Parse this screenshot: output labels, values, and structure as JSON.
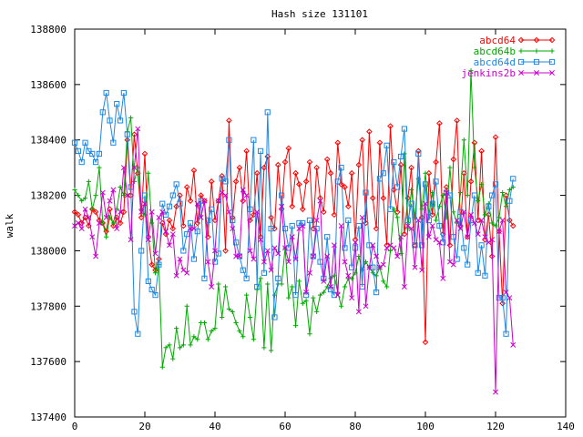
{
  "chart_data": {
    "type": "line",
    "title": "Hash size 131101",
    "xlabel": "",
    "ylabel": "walk",
    "xlim": [
      0,
      140
    ],
    "ylim": [
      137400,
      138800
    ],
    "xticks": [
      0,
      20,
      40,
      60,
      80,
      100,
      120,
      140
    ],
    "yticks": [
      137400,
      137600,
      137800,
      138000,
      138200,
      138400,
      138600,
      138800
    ],
    "grid": false,
    "legend_position": "top-right",
    "series": [
      {
        "name": "abcd64",
        "color": "#ff0000",
        "marker": "diamond",
        "x": [
          0,
          1,
          2,
          3,
          4,
          5,
          6,
          7,
          8,
          9,
          10,
          11,
          12,
          13,
          14,
          15,
          16,
          17,
          18,
          19,
          20,
          21,
          22,
          23,
          24,
          25,
          26,
          27,
          28,
          29,
          30,
          31,
          32,
          33,
          34,
          35,
          36,
          37,
          38,
          39,
          40,
          41,
          42,
          43,
          44,
          45,
          46,
          47,
          48,
          49,
          50,
          51,
          52,
          53,
          54,
          55,
          56,
          57,
          58,
          59,
          60,
          61,
          62,
          63,
          64,
          65,
          66,
          67,
          68,
          69,
          70,
          71,
          72,
          73,
          74,
          75,
          76,
          77,
          78,
          79,
          80,
          81,
          82,
          83,
          84,
          85,
          86,
          87,
          88,
          89,
          90,
          91,
          92,
          93,
          94,
          95,
          96,
          97,
          98,
          99,
          100,
          101,
          102,
          103,
          104,
          105,
          106,
          107,
          108,
          109,
          110,
          111,
          112,
          113,
          114,
          115,
          116,
          117,
          118,
          119,
          120,
          121,
          122,
          123,
          124,
          125
        ],
        "y": [
          138140,
          138130,
          138100,
          138120,
          138090,
          138150,
          138140,
          138110,
          138100,
          138070,
          138150,
          138090,
          138120,
          138100,
          138140,
          138400,
          138200,
          138420,
          138280,
          138120,
          138350,
          138050,
          137950,
          137930,
          137970,
          138100,
          138060,
          138110,
          138080,
          138160,
          138200,
          138090,
          138230,
          138180,
          138290,
          138100,
          138200,
          138180,
          138050,
          138250,
          138110,
          138180,
          138270,
          138000,
          138470,
          138120,
          138250,
          138300,
          138180,
          138360,
          138110,
          138130,
          138280,
          138050,
          138300,
          138340,
          138120,
          138080,
          138310,
          138150,
          138320,
          138370,
          138160,
          138280,
          138240,
          138150,
          138250,
          138320,
          138080,
          138300,
          138190,
          138140,
          138330,
          138280,
          138130,
          138390,
          138240,
          138230,
          138160,
          138280,
          138040,
          138310,
          138400,
          138100,
          138430,
          138190,
          138080,
          138390,
          138190,
          138020,
          138450,
          138220,
          138140,
          138310,
          138060,
          138190,
          138300,
          138020,
          138360,
          138120,
          137670,
          138280,
          138130,
          138320,
          138460,
          138060,
          138230,
          138020,
          138330,
          138470,
          138090,
          138280,
          138050,
          138250,
          138390,
          138110,
          138360,
          138040,
          138130,
          137980,
          138410,
          138070,
          137810,
          138200,
          138110,
          138090
        ]
      },
      {
        "name": "abcd64b",
        "color": "#00aa00",
        "marker": "plus",
        "x": [
          0,
          1,
          2,
          3,
          4,
          5,
          6,
          7,
          8,
          9,
          10,
          11,
          12,
          13,
          14,
          15,
          16,
          17,
          18,
          19,
          20,
          21,
          22,
          23,
          24,
          25,
          26,
          27,
          28,
          29,
          30,
          31,
          32,
          33,
          34,
          35,
          36,
          37,
          38,
          39,
          40,
          41,
          42,
          43,
          44,
          45,
          46,
          47,
          48,
          49,
          50,
          51,
          52,
          53,
          54,
          55,
          56,
          57,
          58,
          59,
          60,
          61,
          62,
          63,
          64,
          65,
          66,
          67,
          68,
          69,
          70,
          71,
          72,
          73,
          74,
          75,
          76,
          77,
          78,
          79,
          80,
          81,
          82,
          83,
          84,
          85,
          86,
          87,
          88,
          89,
          90,
          91,
          92,
          93,
          94,
          95,
          96,
          97,
          98,
          99,
          100,
          101,
          102,
          103,
          104,
          105,
          106,
          107,
          108,
          109,
          110,
          111,
          112,
          113,
          114,
          115,
          116,
          117,
          118,
          119,
          120,
          121,
          122,
          123,
          124,
          125
        ],
        "y": [
          138220,
          138200,
          138180,
          138190,
          138250,
          138150,
          138200,
          138300,
          138100,
          138050,
          138120,
          138100,
          138150,
          138230,
          138200,
          138430,
          138480,
          138250,
          138300,
          138150,
          138130,
          138280,
          138100,
          137920,
          137950,
          137580,
          137650,
          137660,
          137610,
          137720,
          137650,
          137660,
          137800,
          137660,
          137690,
          137680,
          137740,
          137740,
          137680,
          137710,
          137720,
          137880,
          137760,
          137870,
          137790,
          137780,
          137740,
          137710,
          137690,
          137840,
          137760,
          137680,
          137860,
          137900,
          137650,
          137880,
          137640,
          137840,
          137880,
          137880,
          138010,
          137830,
          137870,
          137730,
          137890,
          137810,
          137820,
          137700,
          137830,
          137780,
          137840,
          137850,
          137870,
          137900,
          137910,
          137850,
          137800,
          137870,
          137900,
          137900,
          137920,
          137980,
          137930,
          137960,
          137940,
          137920,
          137910,
          137940,
          137890,
          137870,
          138000,
          138150,
          138120,
          137990,
          138350,
          138080,
          138220,
          138120,
          138260,
          138150,
          138280,
          138130,
          138210,
          138110,
          138160,
          138200,
          138120,
          138300,
          138140,
          138100,
          138210,
          138400,
          138200,
          138650,
          138300,
          138180,
          138240,
          138130,
          138170,
          138100,
          138090,
          138120,
          138210,
          138160,
          138220,
          138230
        ]
      },
      {
        "name": "abcd64d",
        "color": "#1e88e5",
        "marker": "square",
        "x": [
          0,
          1,
          2,
          3,
          4,
          5,
          6,
          7,
          8,
          9,
          10,
          11,
          12,
          13,
          14,
          15,
          16,
          17,
          18,
          19,
          20,
          21,
          22,
          23,
          24,
          25,
          26,
          27,
          28,
          29,
          30,
          31,
          32,
          33,
          34,
          35,
          36,
          37,
          38,
          39,
          40,
          41,
          42,
          43,
          44,
          45,
          46,
          47,
          48,
          49,
          50,
          51,
          52,
          53,
          54,
          55,
          56,
          57,
          58,
          59,
          60,
          61,
          62,
          63,
          64,
          65,
          66,
          67,
          68,
          69,
          70,
          71,
          72,
          73,
          74,
          75,
          76,
          77,
          78,
          79,
          80,
          81,
          82,
          83,
          84,
          85,
          86,
          87,
          88,
          89,
          90,
          91,
          92,
          93,
          94,
          95,
          96,
          97,
          98,
          99,
          100,
          101,
          102,
          103,
          104,
          105,
          106,
          107,
          108,
          109,
          110,
          111,
          112,
          113,
          114,
          115,
          116,
          117,
          118,
          119,
          120,
          121,
          122,
          123,
          124,
          125
        ],
        "y": [
          138390,
          138360,
          138320,
          138390,
          138360,
          138350,
          138320,
          138350,
          138500,
          138570,
          138470,
          138390,
          138530,
          138470,
          138570,
          138420,
          138230,
          137780,
          137700,
          138000,
          138200,
          137890,
          137860,
          137840,
          137950,
          138170,
          138130,
          138160,
          138200,
          138240,
          138170,
          138000,
          138060,
          138100,
          137970,
          138070,
          138180,
          137900,
          138110,
          138150,
          137960,
          137990,
          138260,
          138250,
          138400,
          138110,
          138030,
          137980,
          137930,
          137900,
          138150,
          138400,
          137870,
          138360,
          137920,
          138500,
          138080,
          137760,
          137900,
          138200,
          138080,
          138010,
          138090,
          137840,
          138100,
          138100,
          137840,
          138110,
          137980,
          138080,
          137960,
          137900,
          138050,
          137860,
          137840,
          138250,
          138300,
          138010,
          138110,
          137940,
          138010,
          138090,
          137870,
          138210,
          138020,
          137940,
          137850,
          138260,
          138280,
          138380,
          138150,
          138320,
          138230,
          138340,
          138440,
          138110,
          138170,
          138020,
          138350,
          138020,
          138240,
          138110,
          138170,
          138250,
          138090,
          138030,
          138210,
          138200,
          138050,
          137970,
          138140,
          138010,
          137950,
          138110,
          138200,
          137920,
          138020,
          137910,
          138160,
          138200,
          138240,
          137830,
          137830,
          137700,
          138180,
          138260
        ]
      },
      {
        "name": "jenkins2b",
        "color": "#cc00cc",
        "marker": "cross",
        "x": [
          0,
          1,
          2,
          3,
          4,
          5,
          6,
          7,
          8,
          9,
          10,
          11,
          12,
          13,
          14,
          15,
          16,
          17,
          18,
          19,
          20,
          21,
          22,
          23,
          24,
          25,
          26,
          27,
          28,
          29,
          30,
          31,
          32,
          33,
          34,
          35,
          36,
          37,
          38,
          39,
          40,
          41,
          42,
          43,
          44,
          45,
          46,
          47,
          48,
          49,
          50,
          51,
          52,
          53,
          54,
          55,
          56,
          57,
          58,
          59,
          60,
          61,
          62,
          63,
          64,
          65,
          66,
          67,
          68,
          69,
          70,
          71,
          72,
          73,
          74,
          75,
          76,
          77,
          78,
          79,
          80,
          81,
          82,
          83,
          84,
          85,
          86,
          87,
          88,
          89,
          90,
          91,
          92,
          93,
          94,
          95,
          96,
          97,
          98,
          99,
          100,
          101,
          102,
          103,
          104,
          105,
          106,
          107,
          108,
          109,
          110,
          111,
          112,
          113,
          114,
          115,
          116,
          117,
          118,
          119,
          120,
          121,
          122,
          123,
          124,
          125
        ],
        "y": [
          138090,
          138100,
          138080,
          138150,
          138120,
          138050,
          137980,
          138100,
          138210,
          138120,
          138180,
          138220,
          138080,
          138140,
          138300,
          138200,
          138040,
          138300,
          138440,
          138140,
          138170,
          138040,
          138140,
          137990,
          138120,
          138140,
          138070,
          138020,
          138060,
          137910,
          137970,
          137930,
          137920,
          138080,
          138080,
          138170,
          138120,
          138180,
          137960,
          137870,
          138000,
          138180,
          138210,
          138200,
          138140,
          138080,
          137980,
          137980,
          138220,
          138200,
          138000,
          137970,
          138140,
          138040,
          137960,
          138000,
          137930,
          138010,
          137990,
          138160,
          138010,
          137960,
          138050,
          137970,
          138080,
          138090,
          137850,
          137920,
          137980,
          138110,
          138180,
          137890,
          137980,
          137870,
          138020,
          137840,
          138090,
          137960,
          137910,
          137830,
          138030,
          137780,
          138120,
          137800,
          137940,
          138020,
          137980,
          137940,
          137950,
          138010,
          138020,
          138010,
          137980,
          138050,
          137870,
          138090,
          138080,
          137940,
          138110,
          137930,
          138170,
          138050,
          138090,
          138040,
          138030,
          137900,
          138210,
          137960,
          137950,
          138110,
          138080,
          138140,
          138050,
          138130,
          138100,
          138060,
          138110,
          138050,
          138030,
          138040,
          137490,
          138070,
          138110,
          137850,
          137830,
          137660
        ]
      }
    ]
  }
}
